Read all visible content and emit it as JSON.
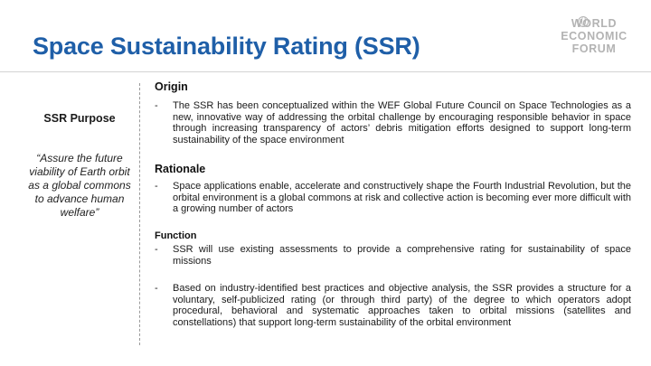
{
  "title": "Space Sustainability Rating (SSR)",
  "logo": {
    "lines": [
      "WORLD",
      "ECONOMIC",
      "FORUM"
    ]
  },
  "left": {
    "purpose_label": "SSR Purpose",
    "quote": "“Assure the future viability of Earth orbit as a global commons to advance human welfare”"
  },
  "sections": {
    "origin": {
      "heading": "Origin",
      "bullets": [
        "The SSR has been conceptualized within the WEF Global Future Council on Space Technologies as a new, innovative way of addressing the orbital challenge by encouraging responsible behavior in space through increasing transparency of actors’ debris mitigation efforts designed to support long-term sustainability of the space environment"
      ]
    },
    "rationale": {
      "heading": "Rationale",
      "bullets": [
        "Space applications enable, accelerate and constructively shape the Fourth Industrial Revolution, but the orbital environment is a global commons at risk and collective action is becoming ever more difficult with a growing number of actors"
      ]
    },
    "function": {
      "heading": "Function",
      "bullets": [
        "SSR will use existing assessments to provide a comprehensive rating for sustainability of space missions",
        "Based on industry-identified best practices and objective analysis, the SSR provides a structure for a voluntary, self-publicized rating (or through third party) of the degree to which operators adopt procedural, behavioral and systematic approaches taken to orbital missions (satellites and constellations) that support long-term sustainability of the orbital environment"
      ]
    },
    "bullet_marker": "-"
  }
}
